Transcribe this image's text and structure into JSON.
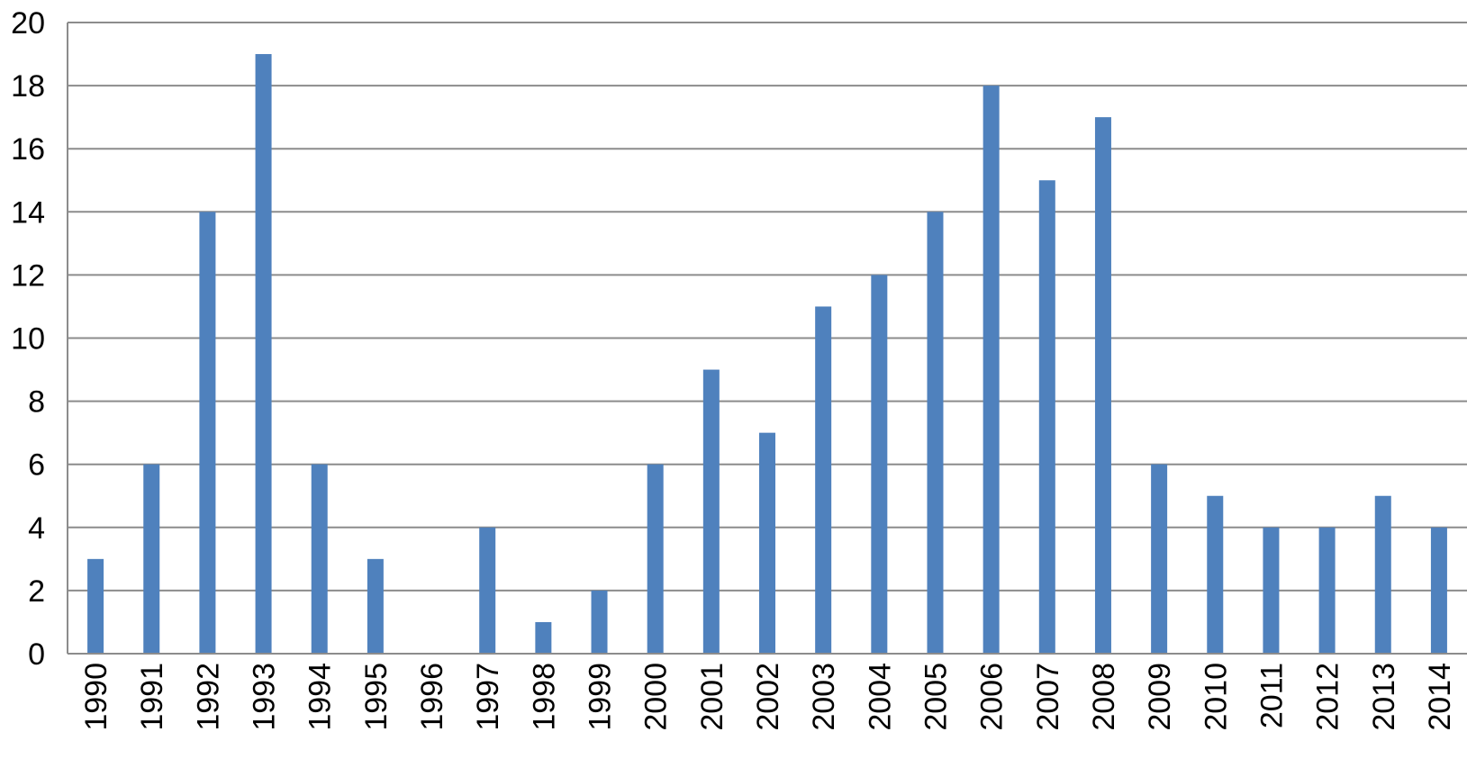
{
  "chart_data": {
    "type": "bar",
    "categories": [
      "1990",
      "1991",
      "1992",
      "1993",
      "1994",
      "1995",
      "1996",
      "1997",
      "1998",
      "1999",
      "2000",
      "2001",
      "2002",
      "2003",
      "2004",
      "2005",
      "2006",
      "2007",
      "2008",
      "2009",
      "2010",
      "2011",
      "2012",
      "2013",
      "2014"
    ],
    "values": [
      3,
      6,
      14,
      19,
      6,
      3,
      0,
      4,
      1,
      2,
      6,
      9,
      7,
      11,
      12,
      14,
      18,
      15,
      17,
      6,
      5,
      4,
      4,
      5,
      4
    ],
    "title": "",
    "xlabel": "",
    "ylabel": "",
    "ylim": [
      0,
      20
    ],
    "yticks": [
      "0",
      "2",
      "4",
      "6",
      "8",
      "10",
      "12",
      "14",
      "16",
      "18",
      "20"
    ],
    "grid": true,
    "legend": "none",
    "bar_color": "#4f81bd"
  }
}
